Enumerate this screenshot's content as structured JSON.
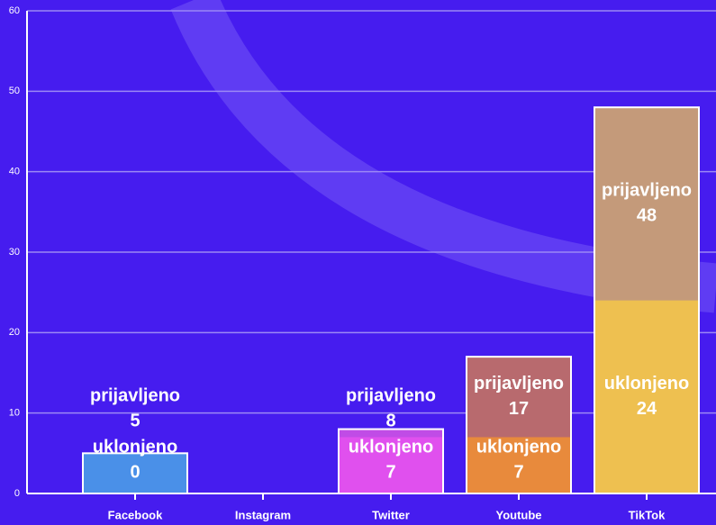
{
  "chart_data": {
    "type": "bar",
    "mode": "overlap",
    "categories": [
      "Facebook",
      "Instagram",
      "Twitter",
      "Youtube",
      "TikTok"
    ],
    "series": [
      {
        "name": "prijavljeno",
        "values": [
          5,
          null,
          8,
          17,
          48
        ],
        "colors": [
          "#4a90e8",
          null,
          "#c04ce6",
          "#b86a6e",
          "#c49a7a"
        ]
      },
      {
        "name": "uklonjeno",
        "values": [
          0,
          null,
          7,
          7,
          24
        ],
        "colors": [
          "#4a90e8",
          null,
          "#e050ee",
          "#e88a3c",
          "#eec050"
        ]
      }
    ],
    "ylim": [
      0,
      60
    ],
    "yticks": [
      0,
      10,
      20,
      30,
      40,
      50,
      60
    ],
    "grid": true
  }
}
